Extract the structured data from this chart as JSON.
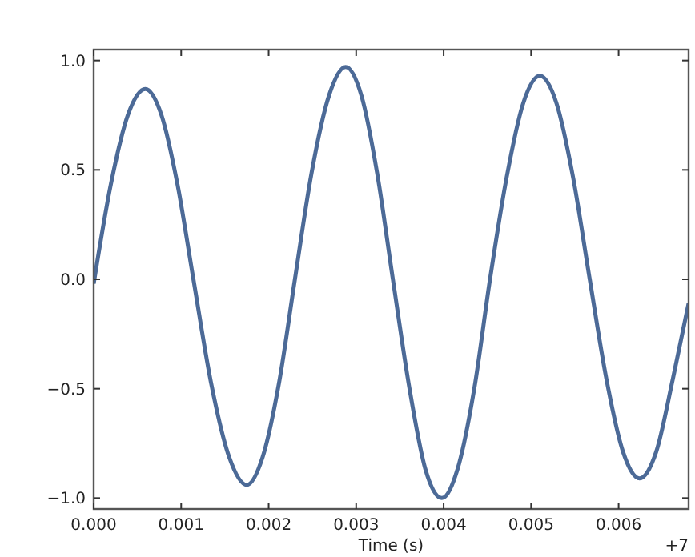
{
  "chart_data": {
    "type": "line",
    "xlabel": "Time (s)",
    "annotations": [
      "+7"
    ],
    "x": [
      0,
      0.000197,
      0.000393,
      0.00059,
      0.000773,
      0.000957,
      0.00114,
      0.00134,
      0.00155,
      0.00175,
      0.00193,
      0.00212,
      0.0023,
      0.00249,
      0.00269,
      0.00288,
      0.00306,
      0.00324,
      0.00342,
      0.00361,
      0.00379,
      0.00398,
      0.00416,
      0.00435,
      0.00453,
      0.00472,
      0.00491,
      0.0051,
      0.00529,
      0.00548,
      0.00567,
      0.00586,
      0.00605,
      0.00624,
      0.00643,
      0.00662,
      0.0068
    ],
    "series": [
      {
        "color": "#4c6a97",
        "values": [
          -0.02,
          0.435,
          0.753,
          0.87,
          0.753,
          0.435,
          0,
          -0.47,
          -0.814,
          -0.94,
          -0.814,
          -0.47,
          0,
          0.485,
          0.84,
          0.97,
          0.84,
          0.485,
          0,
          -0.5,
          -0.866,
          -1.0,
          -0.866,
          -0.5,
          0,
          0.465,
          0.805,
          0.93,
          0.805,
          0.465,
          0,
          -0.455,
          -0.788,
          -0.91,
          -0.788,
          -0.455,
          -0.11
        ]
      }
    ],
    "xlim": [
      0,
      0.0068
    ],
    "ylim": [
      -1.05,
      1.05
    ],
    "xticks": [
      {
        "value": 0,
        "label": "0.000"
      },
      {
        "value": 0.001,
        "label": "0.001"
      },
      {
        "value": 0.002,
        "label": "0.002"
      },
      {
        "value": 0.003,
        "label": "0.003"
      },
      {
        "value": 0.004,
        "label": "0.004"
      },
      {
        "value": 0.005,
        "label": "0.005"
      },
      {
        "value": 0.006,
        "label": "0.006"
      }
    ],
    "yticks": [
      {
        "value": -1,
        "label": "−1.0"
      },
      {
        "value": -0.5,
        "label": "−0.5"
      },
      {
        "value": 0,
        "label": "0.0"
      },
      {
        "value": 0.5,
        "label": "0.5"
      },
      {
        "value": 1,
        "label": "1.0"
      }
    ],
    "grid": false,
    "marker": "none",
    "line_style": "solid"
  }
}
